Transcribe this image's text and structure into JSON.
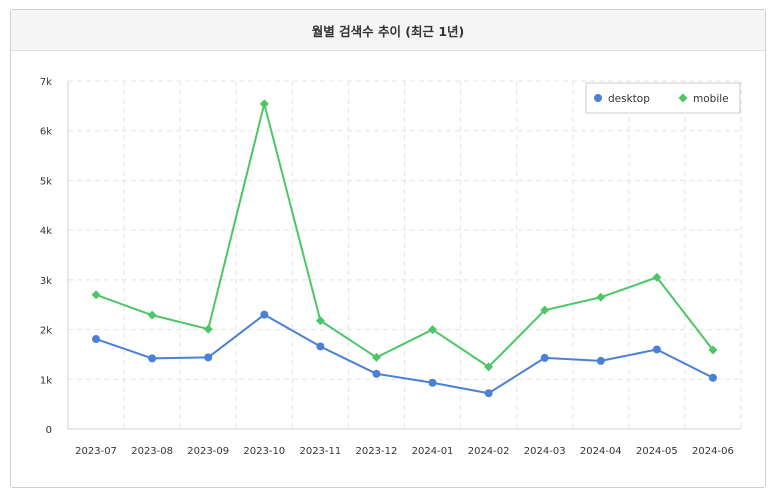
{
  "chart_data": {
    "type": "line",
    "title": "월별 검색수 추이 (최근 1년)",
    "categories": [
      "2023-07",
      "2023-08",
      "2023-09",
      "2023-10",
      "2023-11",
      "2023-12",
      "2024-01",
      "2024-02",
      "2024-03",
      "2024-04",
      "2024-05",
      "2024-06"
    ],
    "series": [
      {
        "name": "desktop",
        "color": "#4a80d6",
        "marker": "circle",
        "values": [
          1810,
          1420,
          1440,
          2300,
          1660,
          1110,
          930,
          720,
          1430,
          1370,
          1600,
          1030
        ]
      },
      {
        "name": "mobile",
        "color": "#4dc665",
        "marker": "diamond",
        "values": [
          2700,
          2290,
          2010,
          6540,
          2180,
          1440,
          2000,
          1250,
          2390,
          2650,
          3050,
          1590
        ]
      }
    ],
    "yticks": [
      "0",
      "1k",
      "2k",
      "3k",
      "4k",
      "5k",
      "6k",
      "7k"
    ],
    "ylim": [
      0,
      7000
    ],
    "grid": true,
    "legend_position": "top-right",
    "xlabel": "",
    "ylabel": ""
  }
}
